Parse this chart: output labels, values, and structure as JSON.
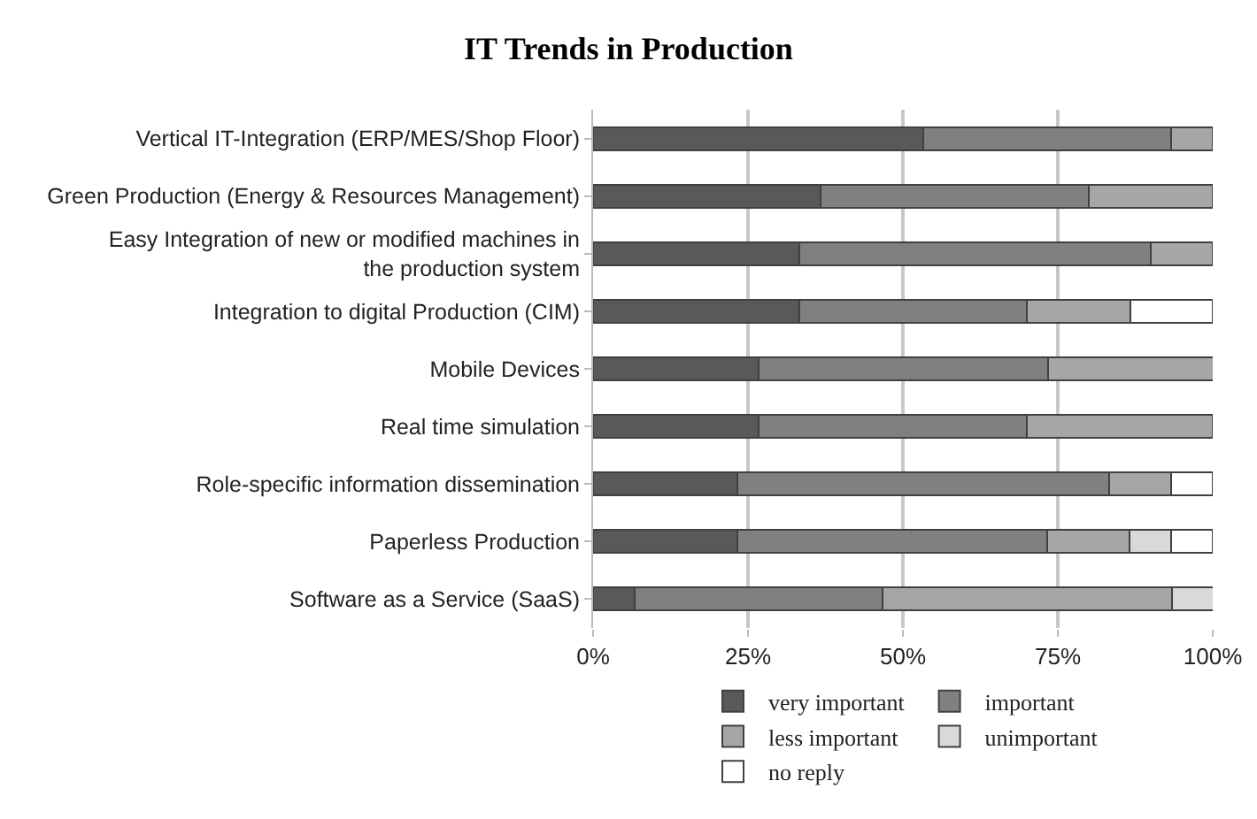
{
  "chart_data": {
    "type": "bar",
    "orientation": "horizontal",
    "stacked": true,
    "title": "IT Trends in Production",
    "categories": [
      "Vertical IT-Integration (ERP/MES/Shop Floor)",
      "Green Production (Energy & Resources Management)",
      "Easy Integration of new or modified machines in the production system",
      "Integration to digital Production (CIM)",
      "Mobile Devices",
      "Real time simulation",
      "Role-specific information dissemination",
      "Paperless Production",
      "Software as a Service (SaaS)"
    ],
    "series": [
      {
        "name": "very important",
        "color": "#595959",
        "values": [
          53.3,
          36.7,
          33.3,
          33.3,
          26.7,
          26.7,
          23.3,
          23.3,
          6.7
        ]
      },
      {
        "name": "important",
        "color": "#808080",
        "values": [
          40,
          43.3,
          56.7,
          36.7,
          46.7,
          43.3,
          60,
          50,
          40
        ]
      },
      {
        "name": "less important",
        "color": "#a6a6a6",
        "values": [
          6.7,
          20,
          10,
          16.7,
          26.7,
          30,
          10,
          13.3,
          46.7
        ]
      },
      {
        "name": "unimportant",
        "color": "#d9d9d9",
        "values": [
          null,
          null,
          null,
          null,
          null,
          null,
          null,
          6.7,
          6.7
        ]
      },
      {
        "name": "no reply",
        "color": "#ffffff",
        "values": [
          null,
          null,
          null,
          13.3,
          null,
          null,
          6.7,
          6.7,
          null
        ]
      }
    ],
    "xlim": [
      0,
      100
    ],
    "xticks": [
      {
        "value": 0,
        "label": "0%"
      },
      {
        "value": 25,
        "label": "25%"
      },
      {
        "value": 50,
        "label": "50%"
      },
      {
        "value": 75,
        "label": "75%"
      },
      {
        "value": 100,
        "label": "100%"
      }
    ],
    "grid": "x",
    "legend": "bottom"
  }
}
